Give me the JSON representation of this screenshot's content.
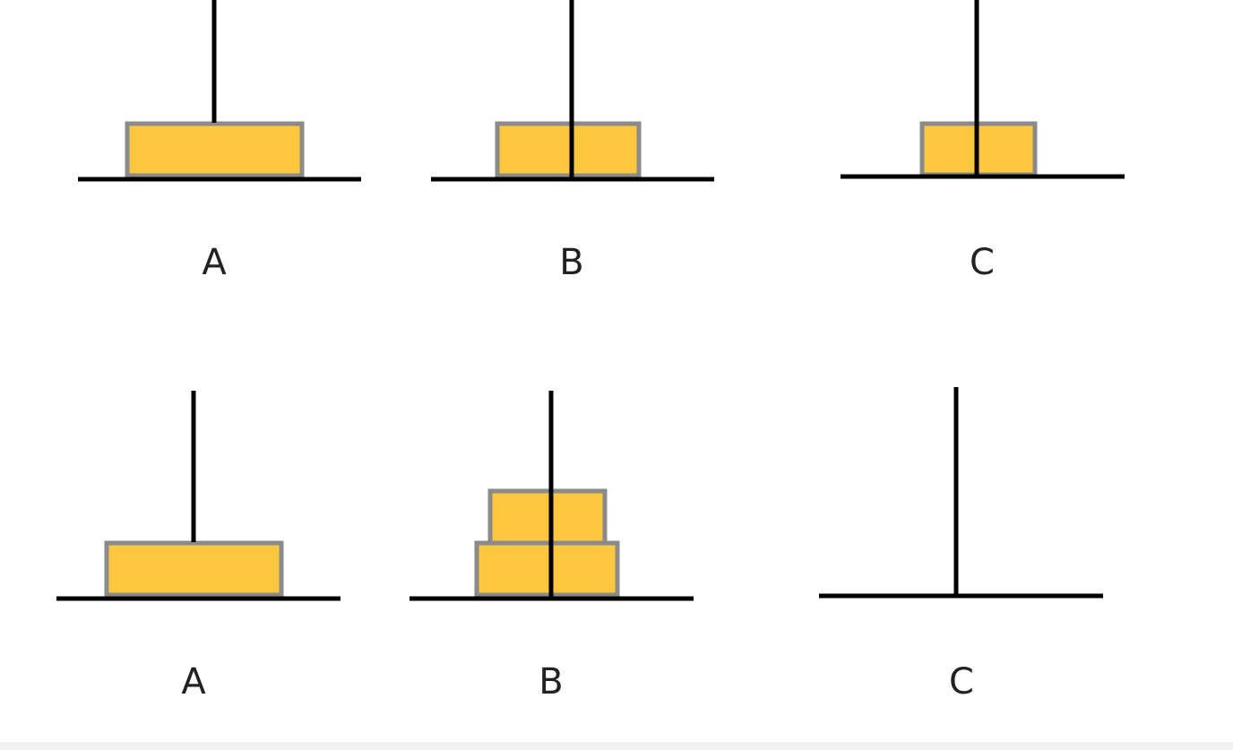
{
  "states": [
    {
      "pegs": [
        {
          "label": "A"
        },
        {
          "label": "B"
        },
        {
          "label": "C"
        }
      ]
    },
    {
      "pegs": [
        {
          "label": "A"
        },
        {
          "label": "B"
        },
        {
          "label": "C"
        }
      ]
    }
  ]
}
